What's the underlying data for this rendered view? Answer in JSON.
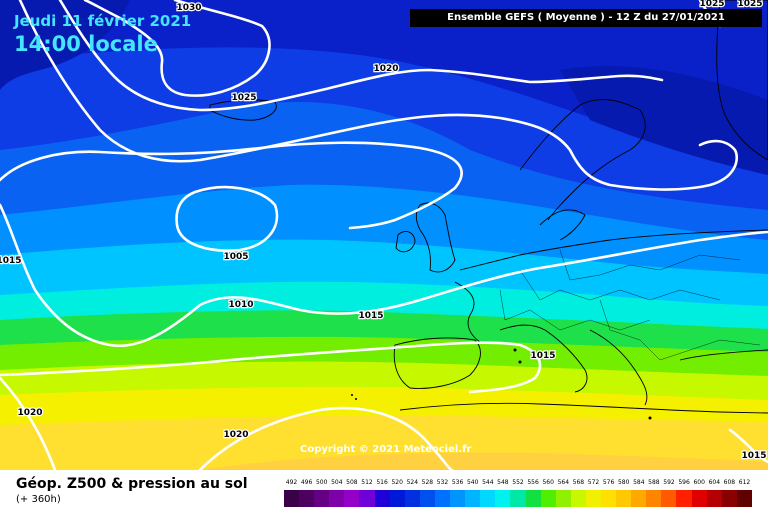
{
  "map": {
    "date_line": "Jeudi 11 février 2021",
    "time_line": "14:00 locale",
    "run_info": "Ensemble GEFS  ( Moyenne )  - 12 Z du 27/01/2021",
    "copyright": "Copyright © 2021 Meteociel.fr",
    "isobar_labels": [
      "1030",
      "1025",
      "1020",
      "1025",
      "1025",
      "1005",
      "1015",
      "1010",
      "1015",
      "1015",
      "1020",
      "1020",
      "1015"
    ],
    "colors": {
      "cold_low": "#0a1fc8",
      "warm_high": "#ffef30",
      "isobar": "#ffffff",
      "land": "#000000"
    }
  },
  "legend": {
    "title": "Géop. Z500 & pression au sol",
    "lead_time": "(+ 360h)",
    "scale_values": [
      "492",
      "496",
      "500",
      "504",
      "508",
      "512",
      "516",
      "520",
      "524",
      "528",
      "532",
      "536",
      "540",
      "544",
      "548",
      "552",
      "556",
      "560",
      "564",
      "568",
      "572",
      "576",
      "580",
      "584",
      "588",
      "592",
      "596",
      "600",
      "604",
      "608",
      "612"
    ],
    "scale_colors": [
      "#3a0048",
      "#4d0060",
      "#650085",
      "#7e00a8",
      "#9400c8",
      "#6e00d8",
      "#2000d8",
      "#0018d8",
      "#0030e0",
      "#0050f0",
      "#0070ff",
      "#0094ff",
      "#00b5ff",
      "#00d8ff",
      "#00f2f0",
      "#00e8a8",
      "#10e040",
      "#50ee00",
      "#90f000",
      "#c8f800",
      "#f0f000",
      "#ffe000",
      "#ffc800",
      "#ffa800",
      "#ff8400",
      "#ff5a00",
      "#ff2000",
      "#e00000",
      "#b40000",
      "#880000",
      "#600000"
    ]
  }
}
